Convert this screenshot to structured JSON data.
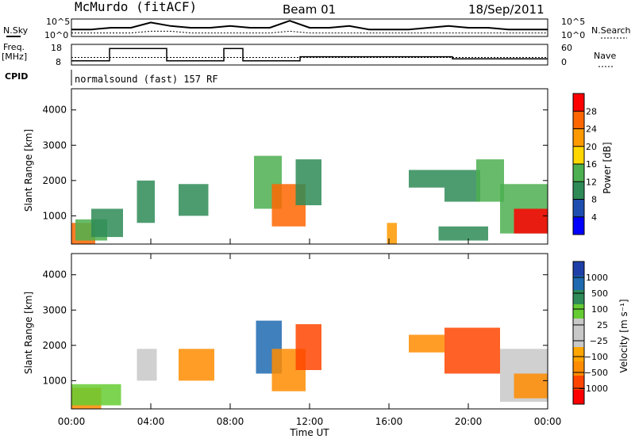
{
  "header": {
    "station": "McMurdo (fitACF)",
    "beam": "Beam 01",
    "date": "18/Sep/2011"
  },
  "noise_panel": {
    "left_label": "N.Sky",
    "right_label": "N.Search",
    "tick_left": [
      "10^5",
      "10^0"
    ],
    "tick_right": [
      "10^5",
      "10^0"
    ]
  },
  "freq_panel": {
    "left_label_line1": "Freq.",
    "left_label_line2": "[MHz]",
    "right_label": "Nave",
    "tick_left": [
      "18",
      "8"
    ],
    "tick_right": [
      "60",
      "0"
    ]
  },
  "cpid": {
    "label": "CPID",
    "mode": "normalsound (fast) 157 RF"
  },
  "colors": {
    "power_scale": [
      "#0000ff",
      "#1e4fb0",
      "#2e8b57",
      "#4caf50",
      "#ffd700",
      "#ff9900",
      "#ff6600",
      "#ff0000"
    ],
    "velocity_scale": [
      "#ff0000",
      "#ff4500",
      "#ff8c00",
      "#ffa500",
      "#c8c8c8",
      "#c8c8c8",
      "#66cc33",
      "#2e8b57",
      "#1e6ab0",
      "#1e3fa8"
    ],
    "ground_scatter": "#c8c8c8"
  },
  "chart_data": [
    {
      "type": "heatmap",
      "name": "power_panel",
      "ylabel": "Slant Range [km]",
      "yticks": [
        "1000",
        "2000",
        "3000",
        "4000"
      ],
      "ylim": [
        200,
        4600
      ],
      "colorbar_label": "Power [dB]",
      "colorbar_ticks": [
        "4",
        "8",
        "12",
        "16",
        "20",
        "24",
        "28"
      ],
      "regions": [
        {
          "t0": 0.0,
          "t1": 1.2,
          "r0": 200,
          "r1": 800,
          "value": 24
        },
        {
          "t0": 0.2,
          "t1": 1.8,
          "r0": 300,
          "r1": 900,
          "value": 14
        },
        {
          "t0": 1.0,
          "t1": 2.6,
          "r0": 400,
          "r1": 1200,
          "value": 10
        },
        {
          "t0": 3.3,
          "t1": 4.2,
          "r0": 800,
          "r1": 2000,
          "value": 8
        },
        {
          "t0": 5.4,
          "t1": 6.9,
          "r0": 1000,
          "r1": 1900,
          "value": 10
        },
        {
          "t0": 9.2,
          "t1": 10.6,
          "r0": 1200,
          "r1": 2700,
          "value": 12
        },
        {
          "t0": 10.1,
          "t1": 11.8,
          "r0": 700,
          "r1": 1900,
          "value": 26
        },
        {
          "t0": 11.3,
          "t1": 12.6,
          "r0": 1300,
          "r1": 2600,
          "value": 8
        },
        {
          "t0": 15.9,
          "t1": 16.4,
          "r0": 200,
          "r1": 800,
          "value": 20
        },
        {
          "t0": 17.0,
          "t1": 18.8,
          "r0": 1800,
          "r1": 2300,
          "value": 8
        },
        {
          "t0": 18.8,
          "t1": 20.6,
          "r0": 1400,
          "r1": 2300,
          "value": 8
        },
        {
          "t0": 20.4,
          "t1": 21.8,
          "r0": 1400,
          "r1": 2600,
          "value": 14
        },
        {
          "t0": 21.6,
          "t1": 24.0,
          "r0": 500,
          "r1": 1900,
          "value": 12
        },
        {
          "t0": 22.3,
          "t1": 24.0,
          "r0": 500,
          "r1": 1200,
          "value": 28
        },
        {
          "t0": 18.5,
          "t1": 21.0,
          "r0": 300,
          "r1": 700,
          "value": 8
        }
      ]
    },
    {
      "type": "heatmap",
      "name": "velocity_panel",
      "ylabel": "Slant Range [km]",
      "yticks": [
        "1000",
        "2000",
        "3000",
        "4000"
      ],
      "ylim": [
        200,
        4600
      ],
      "xlabel": "Time UT",
      "xticks": [
        "00:00",
        "04:00",
        "08:00",
        "12:00",
        "16:00",
        "20:00",
        "00:00"
      ],
      "xlim": [
        0,
        24
      ],
      "colorbar_label": "Velocity [m s⁻¹]",
      "colorbar_ticks": [
        "1000",
        "500",
        "100",
        "25",
        "−25",
        "−100",
        "−500",
        "−1000"
      ],
      "regions": [
        {
          "t0": 0.0,
          "t1": 1.5,
          "r0": 200,
          "r1": 800,
          "value": -300
        },
        {
          "t0": 0.0,
          "t1": 2.5,
          "r0": 300,
          "r1": 900,
          "value": 50
        },
        {
          "t0": 3.3,
          "t1": 4.3,
          "r0": 1000,
          "r1": 1900,
          "value": 0
        },
        {
          "t0": 5.4,
          "t1": 7.2,
          "r0": 1000,
          "r1": 1900,
          "value": -400
        },
        {
          "t0": 9.3,
          "t1": 10.6,
          "r0": 1200,
          "r1": 2700,
          "value": 600
        },
        {
          "t0": 10.1,
          "t1": 11.8,
          "r0": 700,
          "r1": 1900,
          "value": -200
        },
        {
          "t0": 11.3,
          "t1": 12.6,
          "r0": 1300,
          "r1": 2600,
          "value": -500
        },
        {
          "t0": 17.0,
          "t1": 18.8,
          "r0": 1800,
          "r1": 2300,
          "value": -300
        },
        {
          "t0": 18.8,
          "t1": 21.6,
          "r0": 1200,
          "r1": 2500,
          "value": -500
        },
        {
          "t0": 21.6,
          "t1": 24.0,
          "r0": 400,
          "r1": 1900,
          "value": 0
        },
        {
          "t0": 22.3,
          "t1": 24.0,
          "r0": 500,
          "r1": 1200,
          "value": -200
        }
      ]
    },
    {
      "type": "line",
      "name": "noise_series",
      "series": [
        {
          "name": "N.Sky",
          "values": [
            0.4,
            0.4,
            0.5,
            0.5,
            0.8,
            0.6,
            0.5,
            0.5,
            0.6,
            0.5,
            0.5,
            0.9,
            0.5,
            0.5,
            0.6,
            0.4,
            0.4,
            0.4,
            0.5,
            0.6,
            0.5,
            0.5,
            0.4,
            0.4,
            0.4
          ]
        },
        {
          "name": "N.Search",
          "values": [
            0.2,
            0.2,
            0.2,
            0.2,
            0.3,
            0.3,
            0.2,
            0.2,
            0.2,
            0.2,
            0.2,
            0.3,
            0.2,
            0.2,
            0.2,
            0.2,
            0.2,
            0.2,
            0.2,
            0.2,
            0.2,
            0.2,
            0.2,
            0.2,
            0.2
          ]
        }
      ]
    },
    {
      "type": "line",
      "name": "frequency_series",
      "series": [
        {
          "name": "Freq",
          "values": [
            10,
            10,
            16,
            16,
            16,
            10,
            10,
            10,
            16,
            10,
            10,
            10,
            12,
            12,
            12,
            12,
            12,
            12,
            12,
            12,
            11,
            11,
            11,
            11,
            11
          ]
        },
        {
          "name": "Nave",
          "values": [
            22,
            22,
            22,
            22,
            22,
            22,
            22,
            22,
            22,
            22,
            22,
            22,
            22,
            22,
            22,
            22,
            22,
            22,
            22,
            22,
            22,
            22,
            22,
            22,
            22
          ]
        }
      ]
    }
  ]
}
